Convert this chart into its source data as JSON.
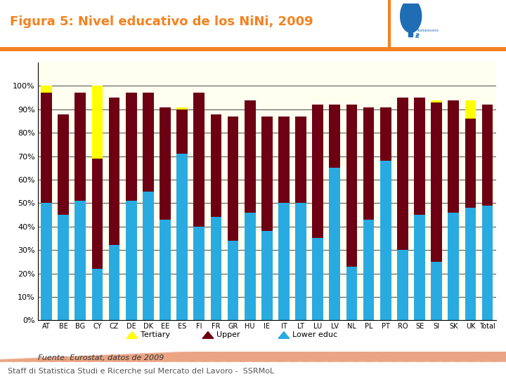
{
  "categories": [
    "AT",
    "BE",
    "BG",
    "CY",
    "CZ",
    "DE",
    "DK",
    "EE",
    "ES",
    "FI",
    "FR",
    "GR",
    "HU",
    "IE",
    "IT",
    "LT",
    "LU",
    "LV",
    "NL",
    "PL",
    "PT",
    "RO",
    "SE",
    "SI",
    "SK",
    "UK",
    "Total"
  ],
  "lower_educ": [
    50,
    45,
    51,
    22,
    32,
    51,
    55,
    43,
    71,
    40,
    44,
    34,
    46,
    38,
    50,
    50,
    35,
    65,
    23,
    43,
    68,
    30,
    45,
    25,
    46,
    48,
    49
  ],
  "upper": [
    47,
    43,
    46,
    47,
    63,
    46,
    42,
    48,
    19,
    57,
    44,
    53,
    48,
    49,
    37,
    37,
    57,
    27,
    69,
    48,
    23,
    65,
    50,
    68,
    48,
    38,
    43
  ],
  "tertiary": [
    3,
    0,
    0,
    31,
    0,
    0,
    0,
    0,
    1,
    0,
    0,
    0,
    0,
    0,
    0,
    0,
    0,
    0,
    0,
    0,
    0,
    0,
    0,
    1,
    0,
    8,
    0
  ],
  "title": "Figura 5: Nivel educativo de los NiNi, 2009",
  "color_lower": "#29ABE2",
  "color_upper": "#6D0013",
  "color_tertiary": "#FFFF00",
  "bg_color": "#FFFFF0",
  "plot_bg": "#FFFFF0",
  "fig_bg": "#FFFFFF",
  "orange_line": "#F58220",
  "title_color": "#F58220",
  "legend_labels": [
    "Tertiary",
    "Upper",
    "Lower educ"
  ],
  "source_text": "Fuente: Eurostat, datos de 2009",
  "footer_text": "Staff di Statistica Studi e Ricerche sul Mercato del Lavoro -  SSRMoL",
  "footer_bg": "#CC5500",
  "title_fontsize": 13,
  "tick_fontsize": 7,
  "ytick_fontsize": 8
}
